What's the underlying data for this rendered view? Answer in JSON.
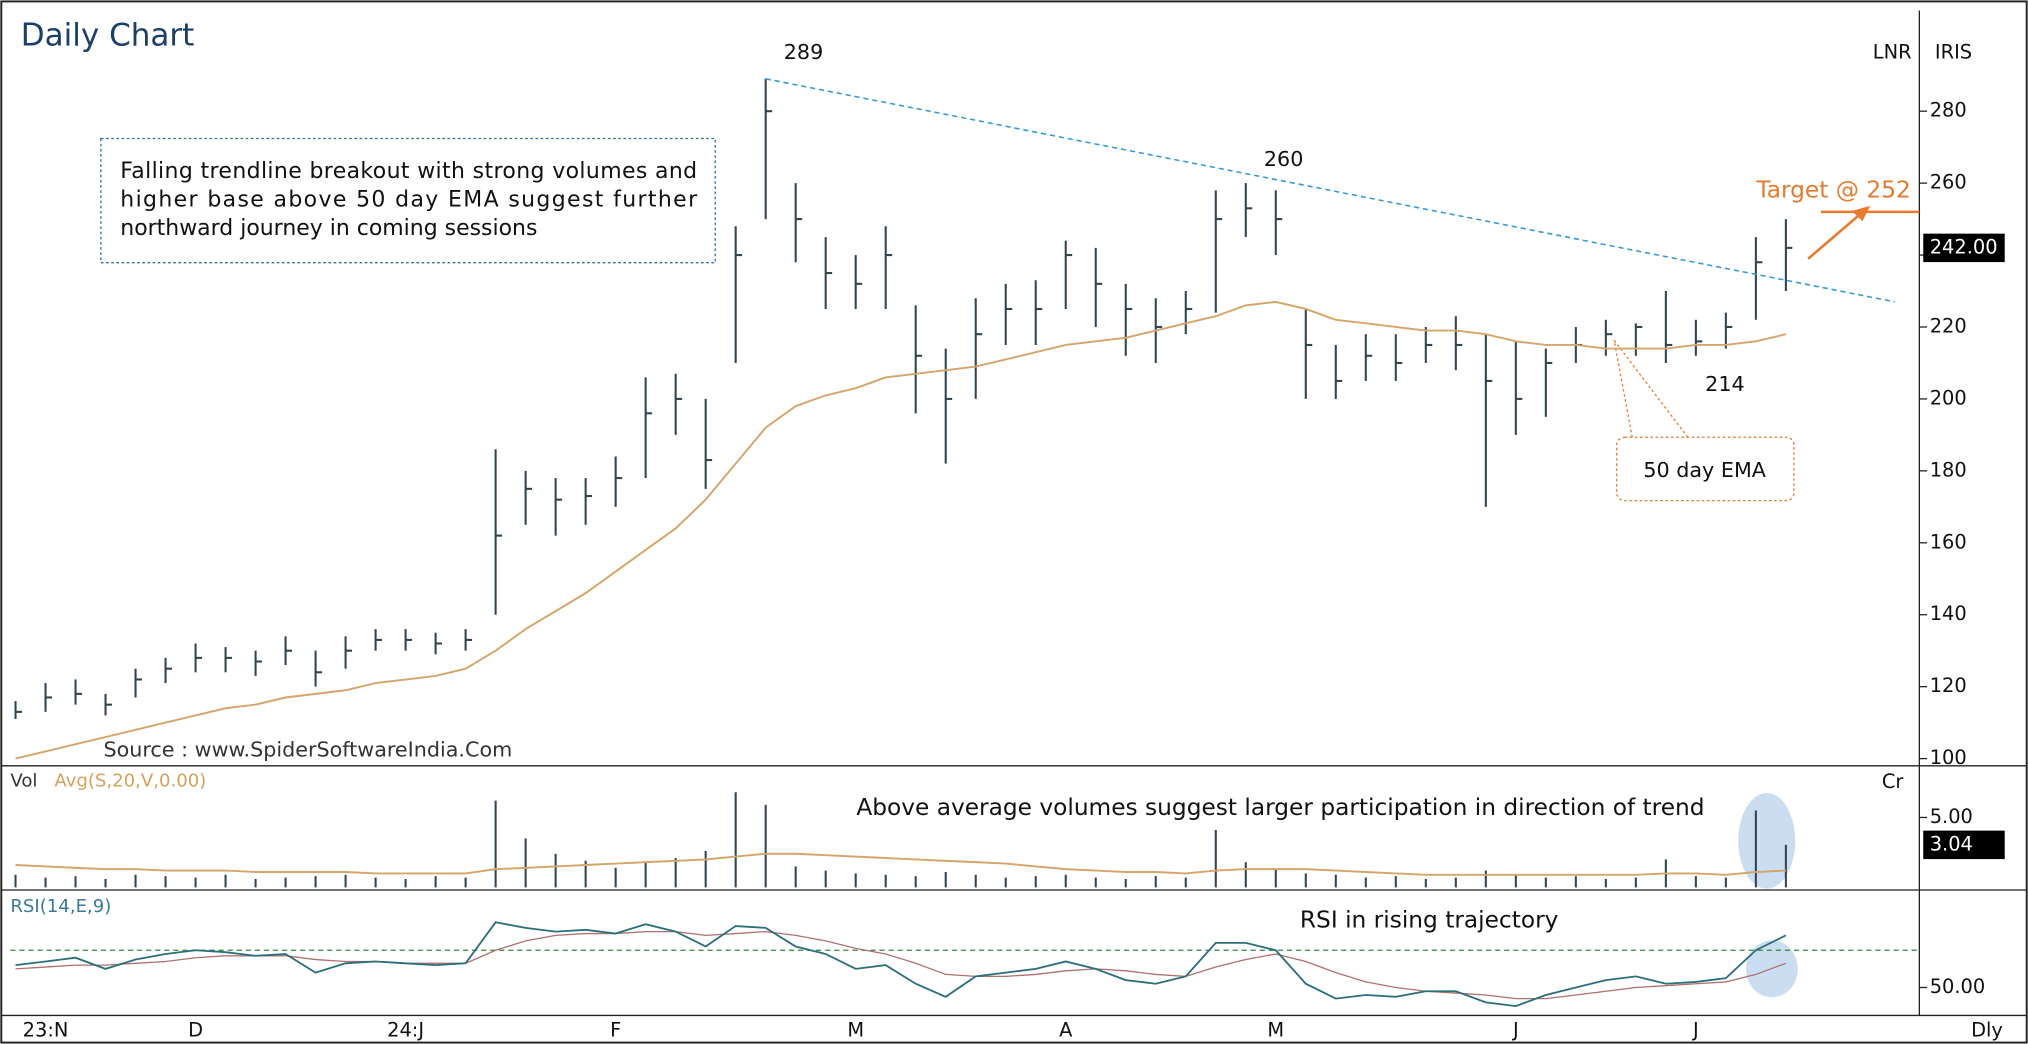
{
  "chart_data": {
    "type": "ohlc",
    "title": "Daily Chart",
    "categories": [
      null,
      "23:N",
      null,
      null,
      null,
      null,
      "D",
      null,
      null,
      null,
      null,
      null,
      null,
      "24:J",
      null,
      null,
      null,
      null,
      null,
      null,
      "F",
      null,
      null,
      null,
      null,
      null,
      null,
      null,
      "M",
      null,
      null,
      null,
      null,
      null,
      null,
      "A",
      null,
      null,
      null,
      null,
      null,
      null,
      "M",
      null,
      null,
      null,
      null,
      null,
      null,
      null,
      "J",
      null,
      null,
      null,
      null,
      null,
      "J",
      null,
      null,
      null
    ],
    "high": [
      116,
      121,
      122,
      118,
      125,
      128,
      132,
      131,
      130,
      134,
      130,
      134,
      136,
      136,
      135,
      136,
      186,
      180,
      178,
      178,
      184,
      206,
      207,
      200,
      248,
      289,
      260,
      245,
      240,
      248,
      226,
      214,
      228,
      232,
      233,
      244,
      242,
      232,
      228,
      230,
      258,
      260,
      258,
      225,
      215,
      218,
      218,
      220,
      223,
      218,
      216,
      214,
      220,
      222,
      221,
      230,
      222,
      224,
      245,
      250
    ],
    "low": [
      111,
      113,
      115,
      112,
      117,
      121,
      124,
      124,
      123,
      126,
      120,
      125,
      130,
      130,
      129,
      130,
      140,
      165,
      162,
      165,
      170,
      178,
      190,
      175,
      210,
      250,
      238,
      225,
      225,
      225,
      196,
      182,
      200,
      215,
      215,
      225,
      220,
      212,
      210,
      218,
      224,
      245,
      240,
      200,
      200,
      205,
      205,
      210,
      208,
      170,
      190,
      195,
      210,
      212,
      212,
      210,
      212,
      214,
      222,
      230
    ],
    "close": [
      113,
      117,
      118,
      115,
      122,
      125,
      128,
      128,
      127,
      130,
      124,
      130,
      133,
      133,
      132,
      133,
      162,
      175,
      172,
      173,
      178,
      196,
      200,
      183,
      240,
      280,
      250,
      235,
      232,
      240,
      212,
      200,
      218,
      225,
      225,
      240,
      232,
      225,
      220,
      225,
      250,
      253,
      250,
      215,
      205,
      212,
      210,
      215,
      215,
      205,
      200,
      210,
      215,
      218,
      220,
      215,
      216,
      220,
      238,
      242
    ],
    "color": "#2f4550",
    "ylim": [
      98,
      308
    ],
    "yticks": [
      100,
      120,
      140,
      160,
      180,
      200,
      220,
      240,
      260,
      280
    ],
    "ema": [
      100,
      102,
      104,
      106,
      108,
      110,
      112,
      114,
      115,
      117,
      118,
      119,
      121,
      122,
      123,
      125,
      130,
      136,
      141,
      146,
      152,
      158,
      164,
      172,
      182,
      192,
      198,
      201,
      203,
      206,
      207,
      208,
      209,
      211,
      213,
      215,
      216,
      217,
      219,
      221,
      223,
      226,
      227,
      225,
      222,
      221,
      220,
      219,
      219,
      218,
      216,
      215,
      215,
      214,
      214,
      214,
      215,
      215,
      216,
      218
    ],
    "ema_color": "#d4a66a",
    "ema_note": "50 day EMA",
    "trendline": [
      289,
      227
    ],
    "trend_color": "#3399dd",
    "target": {
      "value": 252,
      "label": "Target @ 252"
    },
    "target_color": "#e87a2c",
    "last_price": {
      "value": 242,
      "label": "242.00"
    },
    "corner_labels": [
      "LNR",
      "IRIS"
    ],
    "period": "Dly",
    "source": "Source : www.SpiderSoftwareIndia.Com",
    "note": [
      "Falling trendline breakout with strong volumes and",
      "higher base above 50 day EMA suggest further",
      "northward journey in coming sessions"
    ],
    "volume": {
      "label": "Vol",
      "avg_label": "Avg(S,20,V,0.00)",
      "unit": "Cr",
      "values": [
        0.9,
        0.7,
        0.8,
        0.6,
        0.9,
        0.8,
        0.7,
        0.9,
        0.6,
        0.7,
        0.8,
        0.9,
        0.7,
        0.6,
        0.8,
        0.7,
        6.2,
        3.5,
        2.4,
        1.9,
        1.4,
        1.8,
        2.1,
        2.6,
        6.8,
        5.9,
        1.5,
        1.2,
        1.0,
        0.9,
        0.8,
        1.1,
        0.9,
        0.7,
        0.8,
        0.9,
        0.7,
        0.6,
        0.8,
        0.7,
        4.1,
        1.8,
        1.3,
        1.0,
        0.9,
        0.7,
        0.8,
        0.6,
        0.7,
        1.2,
        0.9,
        0.7,
        0.8,
        0.6,
        0.7,
        2.0,
        0.8,
        0.7,
        5.5,
        3.04
      ],
      "avg": [
        1.6,
        1.5,
        1.4,
        1.3,
        1.3,
        1.2,
        1.2,
        1.2,
        1.1,
        1.1,
        1.1,
        1.1,
        1.0,
        1.0,
        1.0,
        1.0,
        1.3,
        1.4,
        1.5,
        1.6,
        1.7,
        1.8,
        1.9,
        2.0,
        2.2,
        2.4,
        2.4,
        2.3,
        2.2,
        2.1,
        2.0,
        1.9,
        1.8,
        1.7,
        1.5,
        1.3,
        1.2,
        1.1,
        1.1,
        1.0,
        1.2,
        1.3,
        1.3,
        1.3,
        1.2,
        1.1,
        1.0,
        0.9,
        0.9,
        0.9,
        0.9,
        0.9,
        0.9,
        0.9,
        0.9,
        1.0,
        1.0,
        0.9,
        1.1,
        1.2
      ],
      "ylim": [
        0,
        8.6
      ],
      "yticks": [
        {
          "value": 5,
          "label": "5.00"
        }
      ],
      "last": {
        "value": 3.04,
        "label": "3.04"
      },
      "note": "Above average volumes suggest larger participation in direction of trend"
    },
    "rsi": {
      "label": "RSI(14,E,9)",
      "values": [
        62,
        64,
        66,
        60,
        65,
        68,
        70,
        69,
        67,
        68,
        58,
        63,
        64,
        63,
        62,
        63,
        85,
        82,
        80,
        81,
        79,
        84,
        80,
        72,
        83,
        82,
        72,
        68,
        60,
        62,
        52,
        45,
        56,
        58,
        60,
        64,
        60,
        54,
        52,
        56,
        74,
        74,
        70,
        52,
        44,
        46,
        45,
        48,
        48,
        42,
        40,
        46,
        50,
        54,
        56,
        52,
        53,
        55,
        70,
        78
      ],
      "signal": [
        60,
        61,
        62,
        62,
        63,
        64,
        66,
        67,
        67,
        67,
        65,
        64,
        64,
        63,
        63,
        63,
        70,
        75,
        78,
        79,
        79,
        80,
        80,
        78,
        79,
        80,
        78,
        75,
        71,
        68,
        63,
        57,
        56,
        56,
        57,
        59,
        60,
        59,
        57,
        56,
        61,
        65,
        68,
        64,
        58,
        53,
        50,
        48,
        47,
        46,
        44,
        44,
        46,
        48,
        50,
        51,
        52,
        53,
        57,
        63
      ],
      "ylim": [
        35,
        101
      ],
      "yticks": [
        {
          "value": 50,
          "label": "50.00"
        }
      ],
      "ref": 70,
      "note": "RSI  in rising trajectory"
    }
  }
}
